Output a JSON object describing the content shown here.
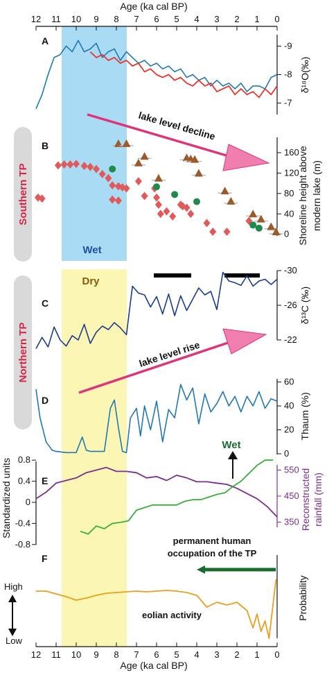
{
  "figure": {
    "top_axis_title": "Age (ka cal BP)",
    "bottom_axis_title": "Age (ka cal BP)",
    "age_ticks": [
      "12",
      "11",
      "10",
      "9",
      "8",
      "7",
      "6",
      "5",
      "4",
      "3",
      "2",
      "1",
      "0"
    ],
    "wet_band_label": "Wet",
    "dry_band_label": "Dry",
    "southern_label": "Southern TP",
    "northern_label": "Northern TP",
    "colors": {
      "wet_band": "#a9dcf4",
      "dry_band": "#fbf6b3",
      "region_pill": "#d9d9d9",
      "region_text": "#d4264a",
      "arrow": "#e0347a",
      "arrow_head": "#f07fb0",
      "blue_series": "#1f77b4",
      "red_series": "#e8342c",
      "navy_series": "#1a3a8f",
      "purple_series": "#7b2d8e",
      "green_series": "#3aae3a",
      "orange_series": "#e6a01e",
      "triangle": "#9c5a2a",
      "diamond": "#e05a5a",
      "circle": "#1e8a4c",
      "dark_green_bar": "#1a6b2e"
    }
  },
  "panels": {
    "A": {
      "letter": "A",
      "ylabel": "δ¹⁸O(‰)",
      "yticks": [
        "-9",
        "-8",
        "-7"
      ]
    },
    "B": {
      "letter": "B",
      "ylabel_1": "Shoreline height above",
      "ylabel_2": "modern lake  (m)",
      "yticks": [
        "160",
        "120",
        "80",
        "40",
        "0"
      ],
      "arrow_label": "lake level decline"
    },
    "C": {
      "letter": "C",
      "ylabel": "δ¹³C (‰)",
      "yticks": [
        "-30",
        "-26",
        "-22"
      ]
    },
    "D": {
      "letter": "D",
      "ylabel": "Thaum (%)",
      "yticks": [
        "60",
        "40",
        "20",
        "0"
      ],
      "arrow_label": "lake level rise"
    },
    "E": {
      "letter": "E",
      "left_ylabel": "Standardized units",
      "left_yticks": [
        "0.8",
        "0.4",
        "0",
        "-0.4",
        "-0.8"
      ],
      "right_ylabel_1": "Reconstructed",
      "right_ylabel_2": "rainfall (mm)",
      "right_yticks": [
        "550",
        "450",
        "350"
      ],
      "wet_label": "Wet"
    },
    "F": {
      "letter": "F",
      "ylabel": "Probability",
      "high_label": "High",
      "low_label": "Low",
      "eolian_label": "eolian activity",
      "occupation_label_1": "permanent human",
      "occupation_label_2": "occupation of the TP"
    }
  },
  "chart_data": [
    {
      "type": "line",
      "panel": "A",
      "ylabel": "δ¹⁸O(‰)",
      "xlabel": "Age (ka cal BP)",
      "xlim": [
        12,
        0
      ],
      "ylim": [
        -9.4,
        -6.6
      ],
      "inverted_y": true,
      "series": [
        {
          "color": "blue",
          "x": [
            12,
            11.7,
            11.4,
            11.1,
            10.8,
            10.5,
            10.2,
            9.9,
            9.6,
            9.3,
            9.0,
            8.7,
            8.4,
            8.1,
            7.8,
            7.5,
            7.2,
            6.9,
            6.6,
            6.3,
            6.0,
            5.7,
            5.4,
            5.1,
            4.8,
            4.5,
            4.2,
            3.9,
            3.6,
            3.3,
            3.0,
            2.7,
            2.4,
            2.1,
            1.8,
            1.5,
            1.2,
            0.9,
            0.6,
            0.3,
            0
          ],
          "y": [
            -6.8,
            -7.3,
            -8.0,
            -8.6,
            -8.7,
            -9.0,
            -8.8,
            -9.2,
            -8.8,
            -8.9,
            -9.1,
            -8.6,
            -8.8,
            -8.9,
            -8.5,
            -8.8,
            -8.6,
            -8.4,
            -8.5,
            -8.3,
            -8.4,
            -8.2,
            -8.3,
            -8.1,
            -8.2,
            -7.9,
            -8.0,
            -7.8,
            -7.9,
            -7.6,
            -7.8,
            -7.6,
            -7.7,
            -7.5,
            -7.7,
            -7.4,
            -7.6,
            -7.6,
            -7.5,
            -7.9,
            -8.0
          ]
        },
        {
          "color": "red",
          "x": [
            9.3,
            9.0,
            8.7,
            8.4,
            8.1,
            7.8,
            7.5,
            7.2,
            6.9,
            6.6,
            6.3,
            6.0,
            5.7,
            5.4,
            5.1,
            4.8,
            4.5,
            4.2,
            3.9,
            3.6,
            3.3,
            3.0,
            2.7,
            2.4,
            2.1,
            1.8,
            1.5,
            1.2,
            0.9,
            0.6,
            0.3,
            0
          ],
          "y": [
            -8.8,
            -8.6,
            -8.7,
            -8.5,
            -8.6,
            -8.4,
            -8.5,
            -8.3,
            -8.4,
            -8.1,
            -8.2,
            -8.0,
            -7.9,
            -8.0,
            -7.8,
            -7.9,
            -7.7,
            -7.6,
            -7.8,
            -7.6,
            -7.7,
            -7.4,
            -7.5,
            -7.6,
            -7.3,
            -7.5,
            -7.3,
            -7.4,
            -7.2,
            -7.5,
            -7.3,
            -7.6
          ]
        }
      ]
    },
    {
      "type": "scatter",
      "panel": "B",
      "ylabel": "Shoreline height above modern lake (m)",
      "xlim": [
        12,
        0
      ],
      "ylim": [
        -10,
        190
      ],
      "series": [
        {
          "marker": "triangle",
          "x": [
            7.9,
            7.5,
            6.6,
            6.9,
            5.9,
            4.5,
            4.3,
            4.1,
            3.9,
            2.6,
            2.3,
            1.2,
            0.8,
            0.3,
            0.05
          ],
          "y": [
            178,
            178,
            153,
            140,
            110,
            150,
            148,
            147,
            120,
            85,
            65,
            40,
            30,
            15,
            5
          ]
        },
        {
          "marker": "diamond",
          "x": [
            11.9,
            11.7,
            10.9,
            10.6,
            10.3,
            10.0,
            9.6,
            9.3,
            9.0,
            8.7,
            8.4,
            8.2,
            7.9,
            7.7,
            7.5,
            8.2,
            7.9,
            6.9,
            6.6,
            6.1,
            6.0,
            5.9,
            5.8,
            5.5,
            5.2,
            4.8,
            4.7,
            4.5,
            4.3,
            3.5,
            3.2,
            2.5,
            1.4
          ],
          "y": [
            72,
            70,
            135,
            137,
            137,
            138,
            134,
            132,
            128,
            118,
            110,
            96,
            94,
            92,
            90,
            68,
            66,
            104,
            75,
            90,
            72,
            58,
            40,
            45,
            35,
            58,
            55,
            52,
            40,
            22,
            5,
            5,
            26
          ]
        },
        {
          "marker": "circle",
          "x": [
            8.2,
            6.0,
            5.1,
            4.0,
            1.2,
            0.9
          ],
          "y": [
            128,
            93,
            78,
            64,
            18,
            12
          ]
        }
      ]
    },
    {
      "type": "line",
      "panel": "C",
      "ylabel": "δ¹³C (‰)",
      "xlim": [
        12,
        0
      ],
      "ylim": [
        -30,
        -20
      ],
      "inverted_y": true,
      "series": [
        {
          "color": "navy",
          "x": [
            12,
            11.7,
            11.4,
            11.1,
            10.8,
            10.5,
            10.2,
            9.9,
            9.6,
            9.3,
            9.0,
            8.7,
            8.4,
            8.1,
            7.8,
            7.5,
            7.2,
            6.9,
            6.6,
            6.3,
            6.0,
            5.7,
            5.4,
            5.1,
            4.8,
            4.5,
            4.2,
            3.9,
            3.6,
            3.3,
            3.0,
            2.7,
            2.4,
            2.1,
            1.8,
            1.5,
            1.2,
            0.9,
            0.6,
            0.3,
            0
          ],
          "y": [
            -21.0,
            -22.3,
            -21.2,
            -23.5,
            -22.0,
            -21.3,
            -22.5,
            -22.0,
            -23.8,
            -21.6,
            -22.9,
            -23.6,
            -23.2,
            -24.0,
            -23.4,
            -22.6,
            -28.2,
            -27.4,
            -27.2,
            -25.8,
            -27.0,
            -25.0,
            -27.3,
            -24.8,
            -27.1,
            -25.4,
            -26.7,
            -28.0,
            -27.2,
            -27.6,
            -25.5,
            -29.8,
            -28.8,
            -28.6,
            -28.3,
            -29.4,
            -28.2,
            -28.8,
            -29.0,
            -28.4,
            -29.0
          ]
        }
      ]
    },
    {
      "type": "line",
      "panel": "D",
      "ylabel": "Thaum (%)",
      "xlim": [
        12,
        0
      ],
      "ylim": [
        0,
        65
      ],
      "series": [
        {
          "color": "blue",
          "x": [
            12,
            11.8,
            11.5,
            11.2,
            11.0,
            10.5,
            10.0,
            9.7,
            9.5,
            9.3,
            9.0,
            8.6,
            8.3,
            8.1,
            7.9,
            7.7,
            7.5,
            7.3,
            7.0,
            6.8,
            6.6,
            6.3,
            6.0,
            5.7,
            5.4,
            5.1,
            4.8,
            4.5,
            4.2,
            3.9,
            3.6,
            3.3,
            3.0,
            2.7,
            2.4,
            2.1,
            1.8,
            1.5,
            1.2,
            0.9,
            0.6,
            0.3,
            0
          ],
          "y": [
            54,
            30,
            10,
            3,
            2,
            1,
            1,
            14,
            3,
            2,
            2,
            2,
            38,
            45,
            22,
            2,
            1,
            30,
            38,
            15,
            40,
            20,
            44,
            10,
            37,
            30,
            58,
            45,
            55,
            25,
            50,
            35,
            42,
            52,
            40,
            48,
            35,
            48,
            40,
            52,
            38,
            46,
            44
          ]
        }
      ]
    },
    {
      "type": "line",
      "panel": "E",
      "xlim": [
        12,
        0
      ],
      "series": [
        {
          "color": "purple",
          "axis": "right",
          "ylabel": "Reconstructed rainfall (mm)",
          "ylim": [
            330,
            650
          ],
          "x": [
            12,
            11.5,
            11,
            10.5,
            10,
            9.5,
            9.0,
            8.5,
            8.0,
            7.5,
            7.0,
            6.5,
            6.0,
            5.5,
            5.0,
            4.5,
            4.0,
            3.5,
            3.0,
            2.5,
            2.0,
            1.5,
            1.0,
            0.5,
            0
          ],
          "y": [
            440,
            465,
            500,
            510,
            520,
            540,
            550,
            560,
            545,
            545,
            540,
            520,
            525,
            510,
            530,
            520,
            505,
            505,
            500,
            495,
            480,
            460,
            440,
            410,
            370
          ]
        },
        {
          "color": "green",
          "axis": "left",
          "ylabel": "Standardized units",
          "ylim": [
            -1.0,
            1.0
          ],
          "x": [
            9.8,
            9.4,
            9.0,
            8.6,
            8.2,
            7.8,
            7.4,
            7.0,
            6.6,
            6.2,
            5.8,
            5.4,
            5.0,
            4.6,
            4.2,
            3.8,
            3.4,
            3.0,
            2.6,
            2.2,
            1.8,
            1.4,
            1.0,
            0.6,
            0.2
          ],
          "y": [
            -0.55,
            -0.6,
            -0.45,
            -0.5,
            -0.4,
            -0.38,
            -0.35,
            -0.15,
            -0.1,
            -0.05,
            -0.05,
            -0.05,
            -0.05,
            0.02,
            0.05,
            0.05,
            0.1,
            0.15,
            0.18,
            0.3,
            0.4,
            0.55,
            0.7,
            0.8,
            0.8
          ]
        }
      ]
    },
    {
      "type": "line",
      "panel": "F",
      "ylabel": "Probability",
      "xlim": [
        12,
        0
      ],
      "ylim": [
        0,
        1
      ],
      "series": [
        {
          "color": "orange",
          "x": [
            12,
            11.5,
            11,
            10.5,
            10,
            9.5,
            9,
            8.5,
            8,
            7.5,
            7,
            6.5,
            6,
            5.5,
            5,
            4.5,
            4,
            3.5,
            3,
            2.5,
            2,
            1.5,
            1.2,
            1.0,
            0.8,
            0.6,
            0.4,
            0.2,
            0.05
          ],
          "y": [
            0.78,
            0.78,
            0.74,
            0.7,
            0.65,
            0.68,
            0.72,
            0.75,
            0.76,
            0.77,
            0.78,
            0.77,
            0.78,
            0.79,
            0.78,
            0.76,
            0.72,
            0.55,
            0.62,
            0.58,
            0.62,
            0.5,
            0.25,
            0.45,
            0.2,
            0.35,
            0.1,
            0.6,
            0.95
          ]
        }
      ]
    }
  ]
}
